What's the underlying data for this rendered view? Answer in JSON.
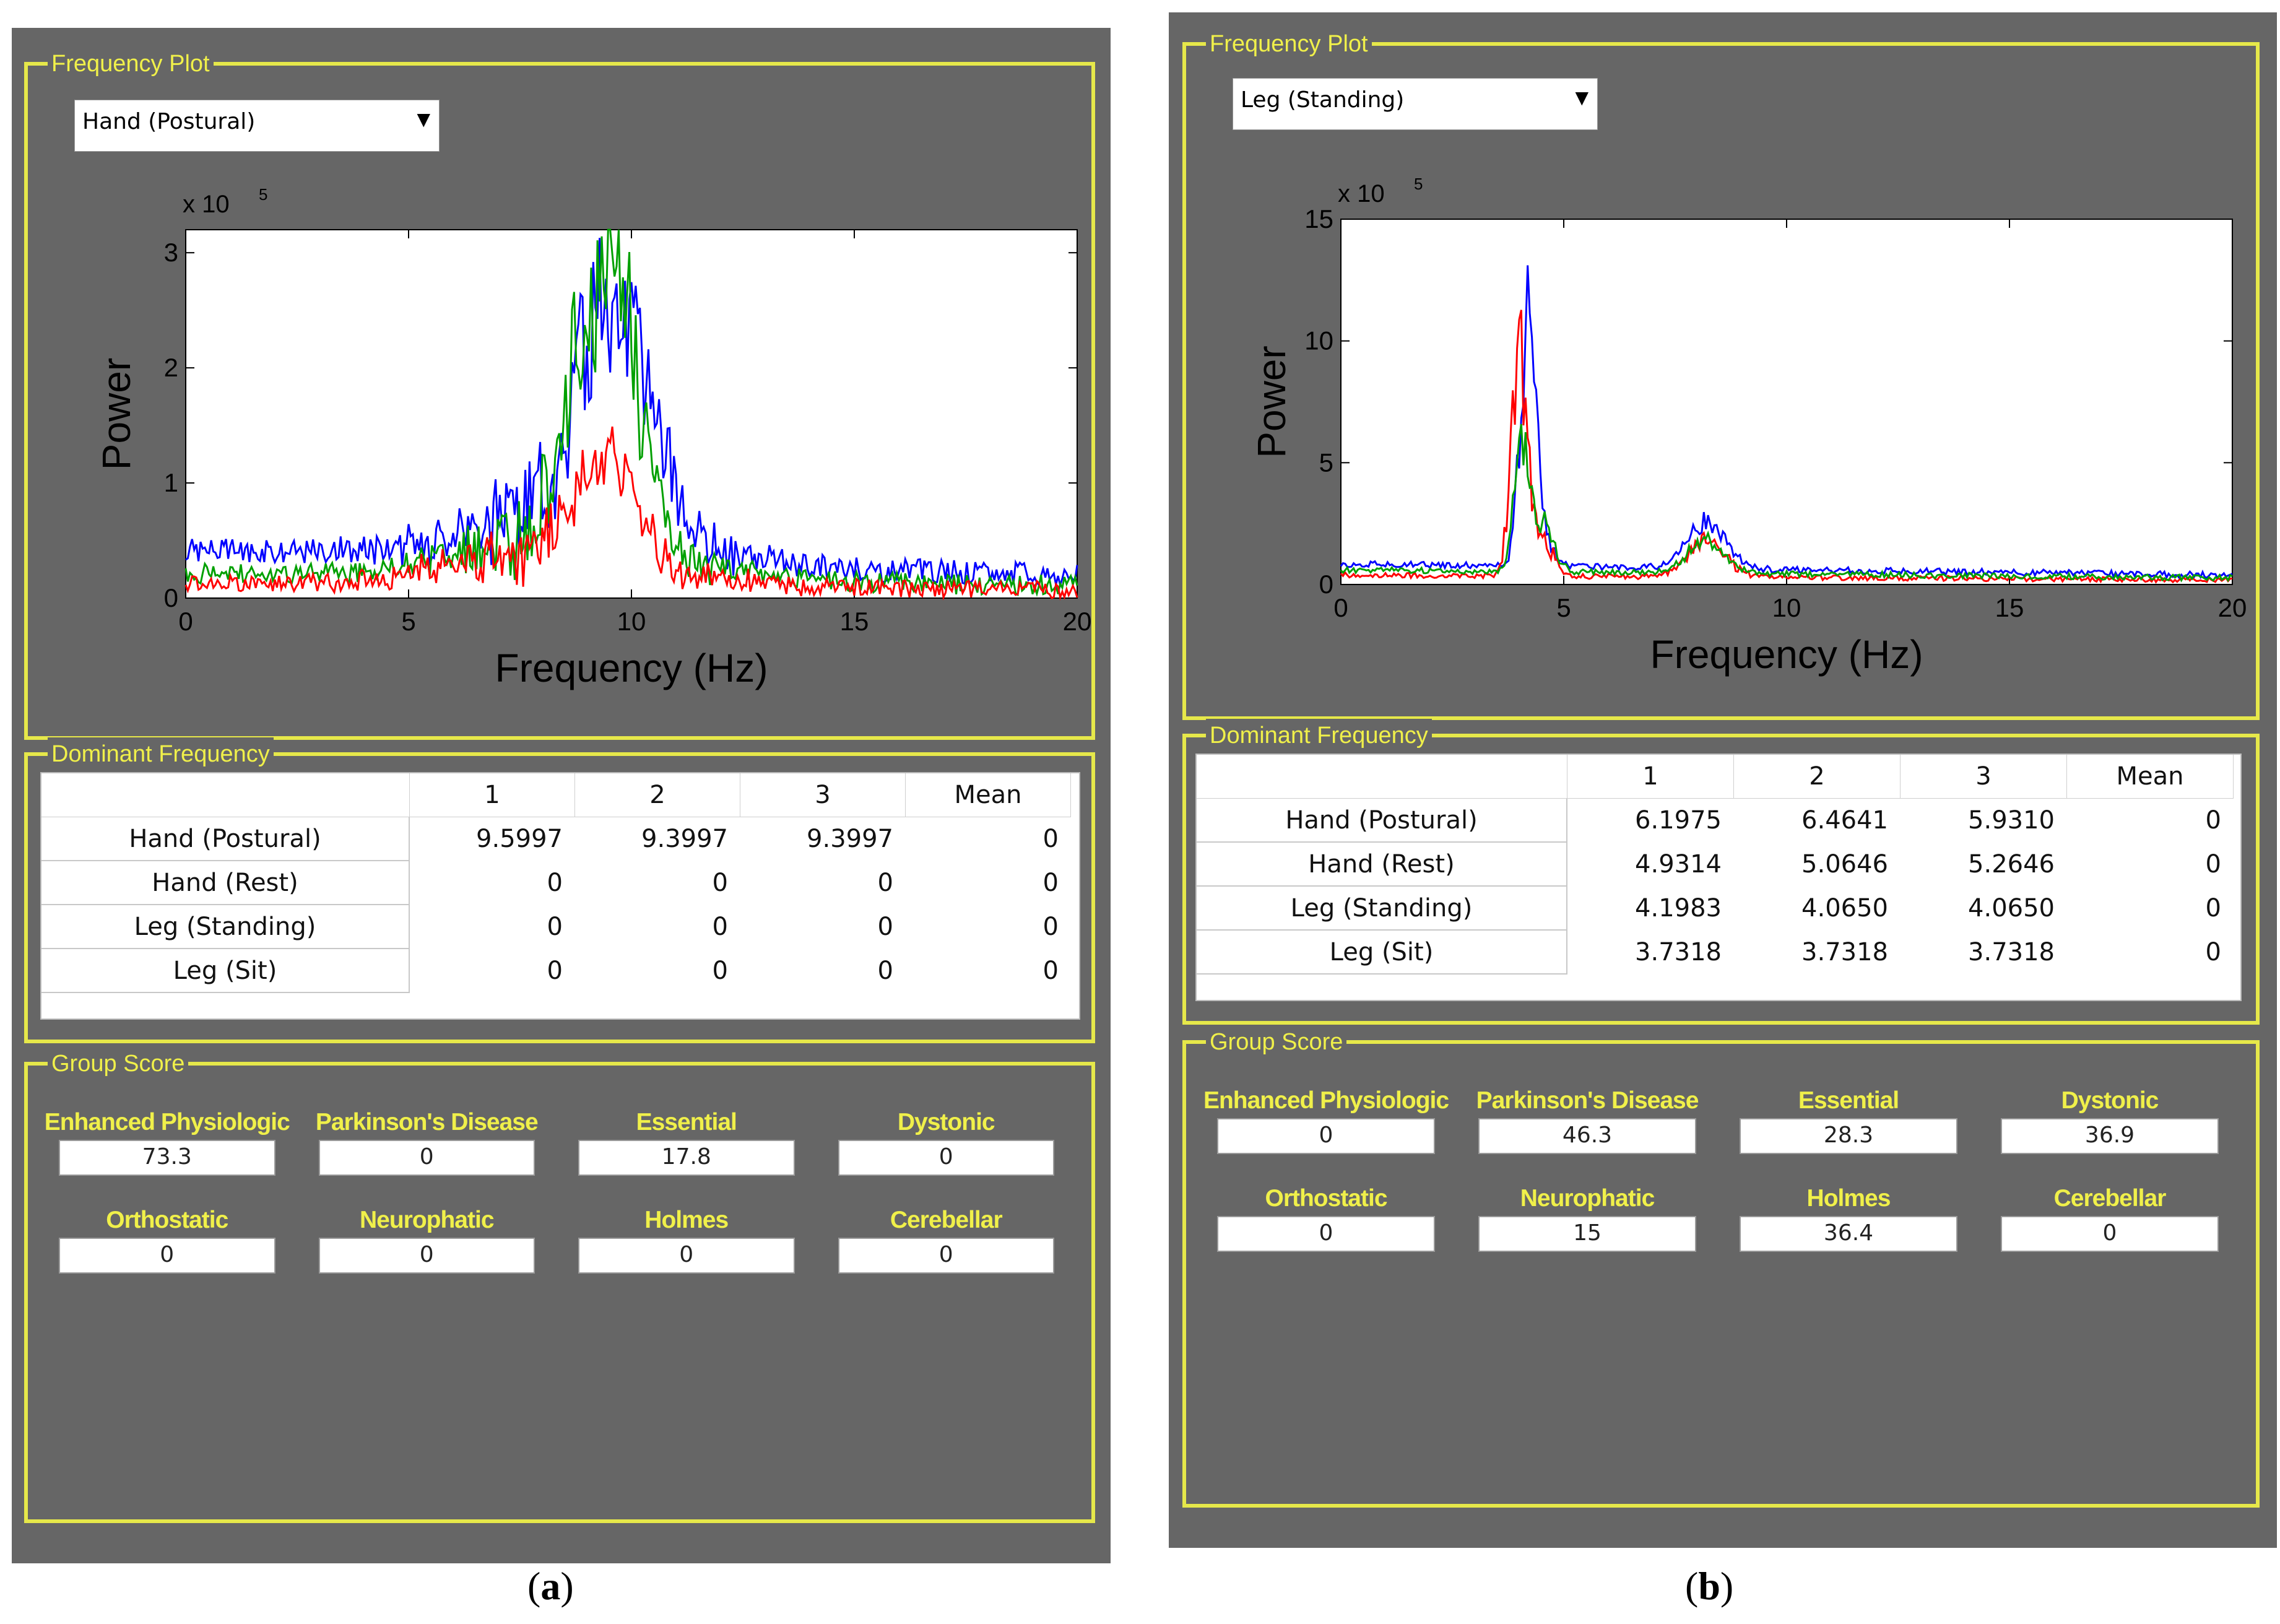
{
  "panels": [
    {
      "id": "a",
      "frequency_plot_title": "Frequency Plot",
      "dropdown_value": "Hand (Postural)",
      "dominant_title": "Dominant Frequency",
      "group_score_title": "Group Score",
      "table": {
        "columns": [
          "1",
          "2",
          "3",
          "Mean"
        ],
        "rows": [
          {
            "label": "Hand (Postural)",
            "values": [
              "9.5997",
              "9.3997",
              "9.3997",
              "0"
            ]
          },
          {
            "label": "Hand (Rest)",
            "values": [
              "0",
              "0",
              "0",
              "0"
            ]
          },
          {
            "label": "Leg (Standing)",
            "values": [
              "0",
              "0",
              "0",
              "0"
            ]
          },
          {
            "label": "Leg (Sit)",
            "values": [
              "0",
              "0",
              "0",
              "0"
            ]
          }
        ]
      },
      "scores": [
        {
          "label": "Enhanced Physiologic",
          "value": "73.3"
        },
        {
          "label": "Parkinson's Disease",
          "value": "0"
        },
        {
          "label": "Essential",
          "value": "17.8"
        },
        {
          "label": "Dystonic",
          "value": "0"
        },
        {
          "label": "Orthostatic",
          "value": "0"
        },
        {
          "label": "Neurophatic",
          "value": "0"
        },
        {
          "label": "Holmes",
          "value": "0"
        },
        {
          "label": "Cerebellar",
          "value": "0"
        }
      ],
      "caption": "a"
    },
    {
      "id": "b",
      "frequency_plot_title": "Frequency Plot",
      "dropdown_value": "Leg (Standing)",
      "dominant_title": "Dominant Frequency",
      "group_score_title": "Group Score",
      "table": {
        "columns": [
          "1",
          "2",
          "3",
          "Mean"
        ],
        "rows": [
          {
            "label": "Hand (Postural)",
            "values": [
              "6.1975",
              "6.4641",
              "5.9310",
              "0"
            ]
          },
          {
            "label": "Hand (Rest)",
            "values": [
              "4.9314",
              "5.0646",
              "5.2646",
              "0"
            ]
          },
          {
            "label": "Leg (Standing)",
            "values": [
              "4.1983",
              "4.0650",
              "4.0650",
              "0"
            ]
          },
          {
            "label": "Leg (Sit)",
            "values": [
              "3.7318",
              "3.7318",
              "3.7318",
              "0"
            ]
          }
        ]
      },
      "scores": [
        {
          "label": "Enhanced Physiologic",
          "value": "0"
        },
        {
          "label": "Parkinson's Disease",
          "value": "46.3"
        },
        {
          "label": "Essential",
          "value": "28.3"
        },
        {
          "label": "Dystonic",
          "value": "36.9"
        },
        {
          "label": "Orthostatic",
          "value": "0"
        },
        {
          "label": "Neurophatic",
          "value": "15"
        },
        {
          "label": "Holmes",
          "value": "36.4"
        },
        {
          "label": "Cerebellar",
          "value": "0"
        }
      ],
      "caption": "b"
    }
  ],
  "chart_data": [
    {
      "type": "line",
      "xlabel": "Frequency (Hz)",
      "ylabel": "Power",
      "exponent_label": "x 10",
      "exponent": "5",
      "xlim": [
        0,
        20
      ],
      "ylim": [
        0,
        3.2
      ],
      "xticks": [
        "0",
        "5",
        "10",
        "15",
        "20"
      ],
      "yticks": [
        "0",
        "1",
        "2",
        "3"
      ],
      "series": [
        {
          "color": "#0000ff",
          "peak_x": 9.6,
          "peak_y": 2.75
        },
        {
          "color": "#00a000",
          "peak_x": 9.4,
          "peak_y": 3.2
        },
        {
          "color": "#ff0000",
          "peak_x": 9.4,
          "peak_y": 1.2
        }
      ]
    },
    {
      "type": "line",
      "xlabel": "Frequency (Hz)",
      "ylabel": "Power",
      "exponent_label": "x 10",
      "exponent": "5",
      "xlim": [
        0,
        20
      ],
      "ylim": [
        0,
        15
      ],
      "xticks": [
        "0",
        "5",
        "10",
        "15",
        "20"
      ],
      "yticks": [
        "0",
        "5",
        "10",
        "15"
      ],
      "series": [
        {
          "color": "#0000ff",
          "peak_x": 4.2,
          "peak_y": 12.5
        },
        {
          "color": "#ff0000",
          "peak_x": 4.0,
          "peak_y": 11.3
        },
        {
          "color": "#00a000",
          "peak_x": 4.05,
          "peak_y": 6.8
        }
      ]
    }
  ]
}
